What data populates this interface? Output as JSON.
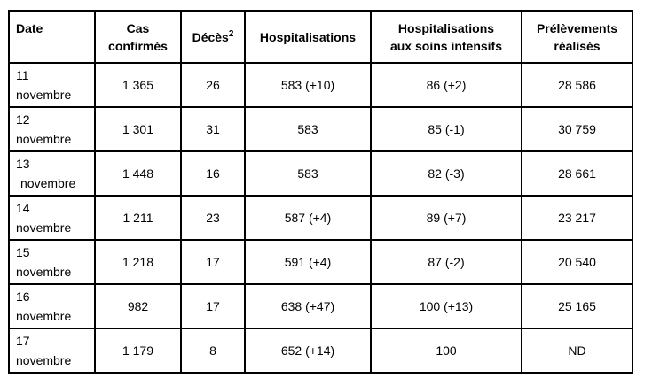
{
  "table": {
    "headers": {
      "date": "Date",
      "cas_line1": "Cas",
      "cas_line2": "confirmés",
      "deces": "Décès",
      "deces_note": "2",
      "hospitalisations": "Hospitalisations",
      "soins_line1": "Hospitalisations",
      "soins_line2": "aux soins intensifs",
      "prelevements_line1": "Prélèvements",
      "prelevements_line2": "réalisés"
    },
    "rows": [
      {
        "day": "11",
        "month": "novembre",
        "cas": "1 365",
        "deces": "26",
        "hosp": "583 (+10)",
        "soins": "86 (+2)",
        "prelevements": "28 586"
      },
      {
        "day": "12",
        "month": "novembre",
        "cas": "1 301",
        "deces": "31",
        "hosp": "583",
        "soins": "85 (-1)",
        "prelevements": "30 759"
      },
      {
        "day": "13",
        "month": "novembre",
        "cas": "1 448",
        "deces": "16",
        "hosp": "583",
        "soins": "82 (-3)",
        "prelevements": "28 661"
      },
      {
        "day": "14",
        "month": "novembre",
        "cas": "1 211",
        "deces": "23",
        "hosp": "587 (+4)",
        "soins": "89 (+7)",
        "prelevements": "23 217"
      },
      {
        "day": "15",
        "month": "novembre",
        "cas": "1 218",
        "deces": "17",
        "hosp": "591 (+4)",
        "soins": "87 (-2)",
        "prelevements": "20 540"
      },
      {
        "day": "16",
        "month": "novembre",
        "cas": "982",
        "deces": "17",
        "hosp": "638 (+47)",
        "soins": "100 (+13)",
        "prelevements": "25 165"
      },
      {
        "day": "17",
        "month": "novembre",
        "cas": "1 179",
        "deces": "8",
        "hosp": "652 (+14)",
        "soins": "100",
        "prelevements": "ND"
      }
    ]
  }
}
